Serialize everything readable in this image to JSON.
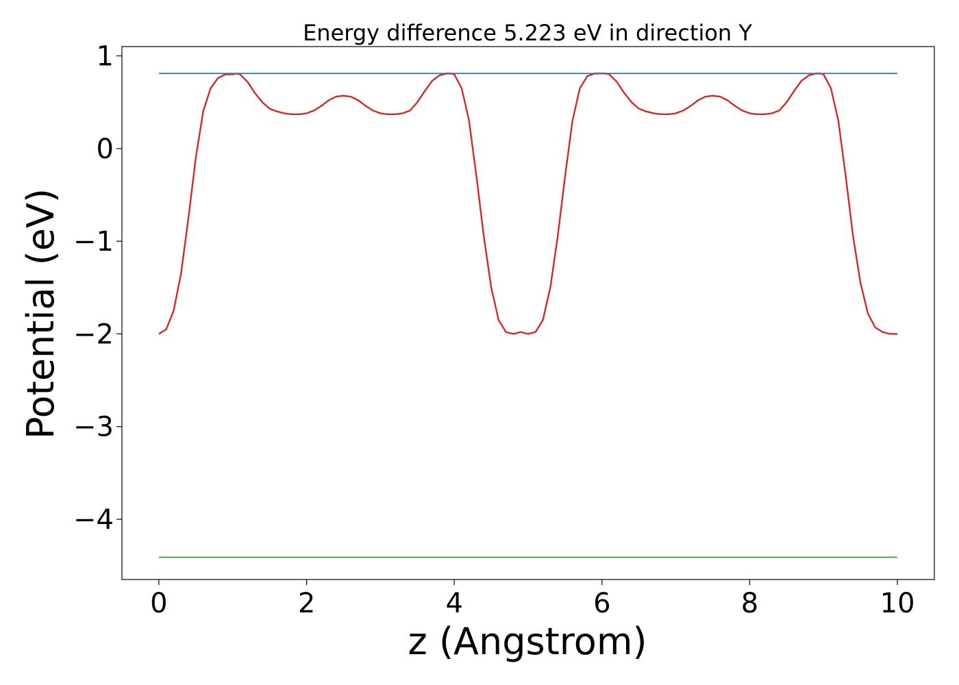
{
  "chart_data": {
    "type": "line",
    "title": "Energy difference 5.223 eV in direction Y",
    "xlabel": "z (Angstrom)",
    "ylabel": "Potential (eV)",
    "xlim": [
      -0.5,
      10.5
    ],
    "ylim": [
      -4.65,
      1.1
    ],
    "xticks": [
      0,
      2,
      4,
      6,
      8,
      10
    ],
    "xtick_labels": [
      "0",
      "2",
      "4",
      "6",
      "8",
      "10"
    ],
    "yticks": [
      1,
      0,
      -1,
      -2,
      -3,
      -4
    ],
    "ytick_labels": [
      "1",
      "0",
      "−1",
      "−2",
      "−3",
      "−4"
    ],
    "grid": false,
    "series": [
      {
        "color": "#d62728",
        "x": [
          0.0,
          0.1,
          0.2,
          0.3,
          0.4,
          0.5,
          0.6,
          0.7,
          0.8,
          0.9,
          1.0,
          1.05,
          1.1,
          1.2,
          1.3,
          1.4,
          1.5,
          1.6,
          1.7,
          1.8,
          1.9,
          2.0,
          2.1,
          2.2,
          2.3,
          2.4,
          2.5,
          2.6,
          2.7,
          2.8,
          2.9,
          3.0,
          3.1,
          3.2,
          3.3,
          3.4,
          3.5,
          3.6,
          3.7,
          3.8,
          3.9,
          3.95,
          4.0,
          4.1,
          4.2,
          4.3,
          4.4,
          4.5,
          4.6,
          4.7,
          4.8,
          4.9,
          5.0,
          5.1,
          5.2,
          5.3,
          5.4,
          5.5,
          5.6,
          5.7,
          5.8,
          5.9,
          6.0,
          6.05,
          6.1,
          6.2,
          6.3,
          6.4,
          6.5,
          6.6,
          6.7,
          6.8,
          6.9,
          7.0,
          7.1,
          7.2,
          7.3,
          7.4,
          7.5,
          7.6,
          7.7,
          7.8,
          7.9,
          8.0,
          8.1,
          8.2,
          8.3,
          8.4,
          8.5,
          8.6,
          8.7,
          8.8,
          8.9,
          8.95,
          9.0,
          9.1,
          9.2,
          9.3,
          9.4,
          9.5,
          9.6,
          9.7,
          9.8,
          9.9,
          10.0
        ],
        "y": [
          -2.0,
          -1.95,
          -1.75,
          -1.35,
          -0.75,
          -0.1,
          0.4,
          0.65,
          0.76,
          0.8,
          0.8,
          0.81,
          0.8,
          0.72,
          0.6,
          0.5,
          0.43,
          0.4,
          0.38,
          0.37,
          0.37,
          0.38,
          0.41,
          0.46,
          0.52,
          0.56,
          0.57,
          0.56,
          0.52,
          0.46,
          0.41,
          0.38,
          0.37,
          0.37,
          0.38,
          0.41,
          0.5,
          0.62,
          0.73,
          0.79,
          0.81,
          0.81,
          0.8,
          0.65,
          0.3,
          -0.3,
          -0.95,
          -1.5,
          -1.85,
          -1.98,
          -2.0,
          -1.98,
          -2.0,
          -1.98,
          -1.85,
          -1.5,
          -0.95,
          -0.3,
          0.3,
          0.65,
          0.78,
          0.81,
          0.81,
          0.81,
          0.8,
          0.72,
          0.6,
          0.5,
          0.43,
          0.4,
          0.38,
          0.37,
          0.37,
          0.38,
          0.41,
          0.46,
          0.52,
          0.56,
          0.57,
          0.56,
          0.52,
          0.46,
          0.41,
          0.38,
          0.37,
          0.37,
          0.38,
          0.41,
          0.5,
          0.62,
          0.73,
          0.79,
          0.81,
          0.81,
          0.8,
          0.65,
          0.3,
          -0.3,
          -0.95,
          -1.45,
          -1.78,
          -1.93,
          -1.98,
          -2.0,
          -2.0
        ]
      },
      {
        "color": "#1f77b4",
        "x": [
          0,
          10
        ],
        "y": [
          0.81,
          0.81
        ]
      },
      {
        "color": "#2ca02c",
        "x": [
          0,
          10
        ],
        "y": [
          -4.41,
          -4.41
        ]
      }
    ]
  }
}
